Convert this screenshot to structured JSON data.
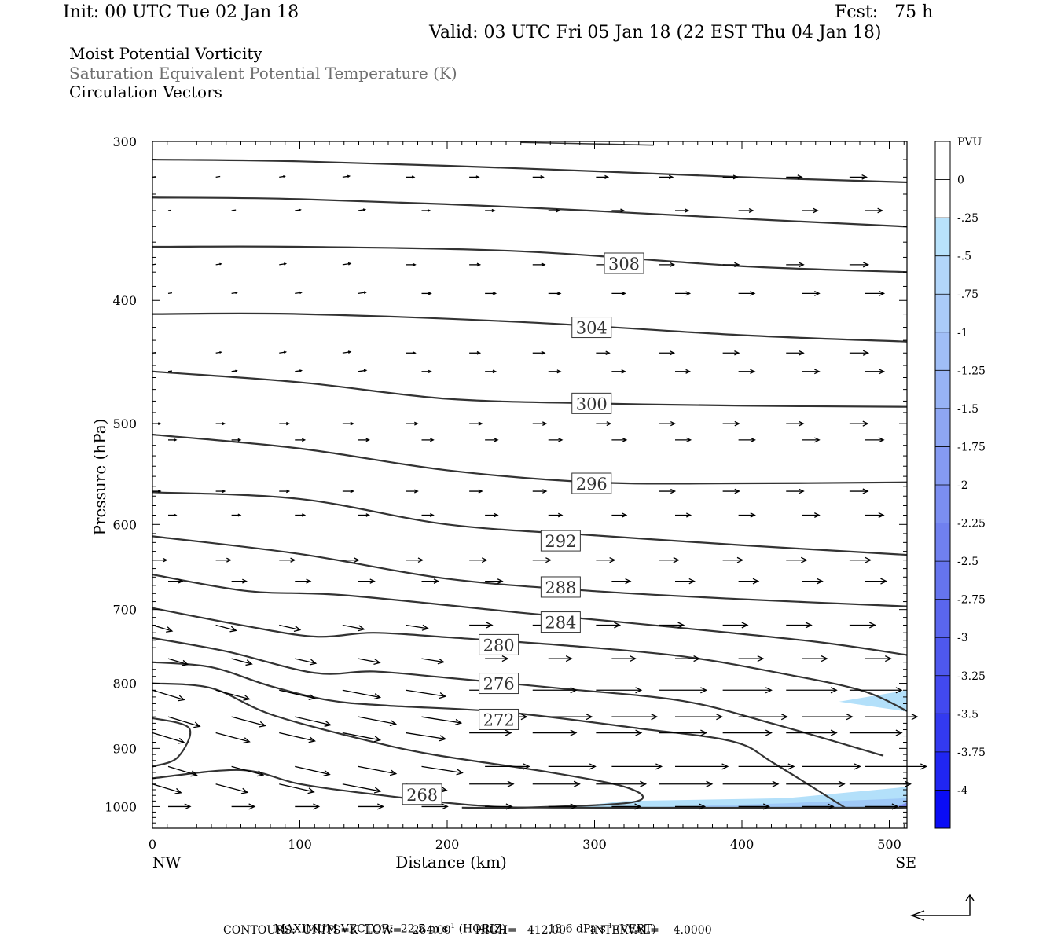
{
  "header": {
    "init": "Init: 00 UTC Tue 02 Jan 18",
    "fcst": "Fcst:   75 h",
    "valid": "Valid: 03 UTC Fri 05 Jan 18 (22 EST Thu 04 Jan 18)",
    "line1": "Moist Potential Vorticity",
    "line2": "Saturation Equivalent Potential Temperature (K)",
    "line3": "Circulation Vectors"
  },
  "footer": {
    "max_vector_label": "MAXIMUM VECTOR:",
    "horiz": "22.5 m s",
    "horiz_sup": "-1",
    "horiz_tag": "(HORIZ)",
    "vert": "13.6 dPa s",
    "vert_sup": "-1",
    "vert_tag": "(VERT)",
    "contours": "CONTOURS:  UNITS=K  LOW=   264.00       HIGH=   412.00       INTERVAL=    4.0000"
  },
  "colors": {
    "contour": "#333333",
    "pv_light": "#b3e0fa",
    "pv_mid": "#9fc9f7",
    "pv_dark": "#7f8df0"
  },
  "chart_data": {
    "type": "cross-section contour",
    "xlabel": "Distance (km)",
    "ylabel": "Pressure (hPa)",
    "x_left_label": "NW",
    "x_right_label": "SE",
    "xlim": [
      0,
      512
    ],
    "ylim": [
      1040,
      300
    ],
    "y_scale": "log",
    "x_ticks": [
      0,
      100,
      200,
      300,
      400,
      500
    ],
    "y_ticks": [
      300,
      400,
      500,
      600,
      700,
      800,
      900,
      1000
    ],
    "contour_labels": [
      {
        "value": "308",
        "x": 320,
        "p": 374
      },
      {
        "value": "304",
        "x": 298,
        "p": 420
      },
      {
        "value": "300",
        "x": 298,
        "p": 482
      },
      {
        "value": "296",
        "x": 298,
        "p": 557
      },
      {
        "value": "292",
        "x": 277,
        "p": 618
      },
      {
        "value": "288",
        "x": 277,
        "p": 672
      },
      {
        "value": "284",
        "x": 277,
        "p": 716
      },
      {
        "value": "280",
        "x": 235,
        "p": 746
      },
      {
        "value": "276",
        "x": 235,
        "p": 800
      },
      {
        "value": "272",
        "x": 235,
        "p": 854
      },
      {
        "value": "268",
        "x": 183,
        "p": 978
      }
    ],
    "contours": [
      [
        [
          0,
          310
        ],
        [
          100,
          311
        ],
        [
          250,
          315
        ],
        [
          400,
          320
        ],
        [
          512,
          323
        ]
      ],
      [
        [
          0,
          332
        ],
        [
          100,
          333
        ],
        [
          250,
          338
        ],
        [
          400,
          345
        ],
        [
          512,
          350
        ]
      ],
      [
        [
          0,
          363
        ],
        [
          100,
          363
        ],
        [
          250,
          366
        ],
        [
          400,
          376
        ],
        [
          512,
          380
        ]
      ],
      [
        [
          0,
          410
        ],
        [
          100,
          410
        ],
        [
          250,
          416
        ],
        [
          400,
          426
        ],
        [
          512,
          431
        ]
      ],
      [
        [
          0,
          455
        ],
        [
          100,
          464
        ],
        [
          200,
          478
        ],
        [
          300,
          482
        ],
        [
          400,
          484
        ],
        [
          512,
          485
        ]
      ],
      [
        [
          0,
          510
        ],
        [
          100,
          523
        ],
        [
          200,
          544
        ],
        [
          300,
          556
        ],
        [
          400,
          557
        ],
        [
          512,
          556
        ]
      ],
      [
        [
          0,
          566
        ],
        [
          100,
          573
        ],
        [
          200,
          600
        ],
        [
          300,
          612
        ],
        [
          400,
          623
        ],
        [
          512,
          634
        ]
      ],
      [
        [
          0,
          613
        ],
        [
          100,
          633
        ],
        [
          200,
          662
        ],
        [
          300,
          677
        ],
        [
          400,
          687
        ],
        [
          512,
          696
        ]
      ],
      [
        [
          0,
          657
        ],
        [
          65,
          677
        ],
        [
          130,
          682
        ],
        [
          250,
          704
        ],
        [
          350,
          722
        ],
        [
          450,
          742
        ],
        [
          512,
          760
        ]
      ],
      [
        [
          0,
          698
        ],
        [
          60,
          720
        ],
        [
          110,
          735
        ],
        [
          150,
          730
        ],
        [
          200,
          736
        ],
        [
          280,
          747
        ],
        [
          360,
          762
        ],
        [
          430,
          787
        ],
        [
          482,
          811
        ],
        [
          512,
          841
        ]
      ],
      [
        [
          0,
          737
        ],
        [
          50,
          755
        ],
        [
          110,
          785
        ],
        [
          150,
          783
        ],
        [
          200,
          792
        ],
        [
          280,
          808
        ],
        [
          360,
          826
        ],
        [
          420,
          860
        ],
        [
          496,
          912
        ]
      ],
      [
        [
          0,
          770
        ],
        [
          40,
          777
        ],
        [
          80,
          804
        ],
        [
          120,
          825
        ],
        [
          160,
          833
        ],
        [
          240,
          843
        ],
        [
          330,
          868
        ],
        [
          394,
          889
        ],
        [
          422,
          925
        ],
        [
          470,
          1002
        ]
      ],
      [
        [
          0,
          800
        ],
        [
          40,
          807
        ],
        [
          80,
          846
        ],
        [
          140,
          884
        ],
        [
          190,
          910
        ],
        [
          270,
          940
        ],
        [
          323,
          967
        ],
        [
          326,
          992
        ],
        [
          250,
          1002
        ],
        [
          210,
          1002
        ]
      ],
      [
        [
          0,
          852
        ],
        [
          25,
          868
        ],
        [
          17,
          915
        ],
        [
          0,
          930
        ]
      ],
      [
        [
          0,
          950
        ],
        [
          60,
          936
        ],
        [
          100,
          960
        ],
        [
          150,
          978
        ],
        [
          220,
          998
        ],
        [
          280,
          1002
        ],
        [
          512,
          1002
        ]
      ]
    ],
    "pv_shaded_regions": [
      {
        "level": "-0.25 to -0.5",
        "polygon": [
          [
            466,
            827
          ],
          [
            512,
            810
          ],
          [
            512,
            842
          ]
        ]
      },
      {
        "level": "-0.25 to -0.5",
        "polygon": [
          [
            280,
            1002
          ],
          [
            320,
            990
          ],
          [
            430,
            985
          ],
          [
            512,
            965
          ],
          [
            512,
            1002
          ]
        ]
      },
      {
        "level": "-0.5 to -1",
        "polygon": [
          [
            330,
            1002
          ],
          [
            430,
            994
          ],
          [
            512,
            985
          ],
          [
            512,
            1002
          ]
        ]
      },
      {
        "level": "-1.75 to -2",
        "polygon": [
          [
            505,
            1000
          ],
          [
            512,
            993
          ],
          [
            512,
            1000
          ]
        ]
      }
    ],
    "colorbar": {
      "title": "PVU",
      "labels": [
        "0",
        "-.25",
        "-.5",
        "-.75",
        "-1",
        "-1.25",
        "-1.5",
        "-1.75",
        "-2",
        "-2.25",
        "-2.5",
        "-2.75",
        "-3",
        "-3.25",
        "-3.5",
        "-3.75",
        "-4"
      ],
      "colors": [
        "#ffffff",
        "#ffffff",
        "#b8e2fb",
        "#b2d6fa",
        "#aacbf8",
        "#a0bef6",
        "#97b3f5",
        "#8ea6f3",
        "#859af2",
        "#7b8ef1",
        "#7080ef",
        "#6574ee",
        "#5a66ee",
        "#4e58ee",
        "#4249ef",
        "#333af0",
        "#2026f2",
        "#0a0cf5"
      ]
    },
    "vector_grid": {
      "x": [
        0,
        43,
        86,
        129,
        172,
        215,
        258,
        301,
        344,
        387,
        430,
        473
      ],
      "levels_hPa": [
        320,
        340,
        375,
        395,
        440,
        455,
        500,
        515,
        565,
        590,
        640,
        665,
        720,
        765,
        810,
        850,
        875,
        930,
        960,
        1000
      ],
      "note": "horizontal winds increase with distance and near 850-950 hPa"
    }
  }
}
